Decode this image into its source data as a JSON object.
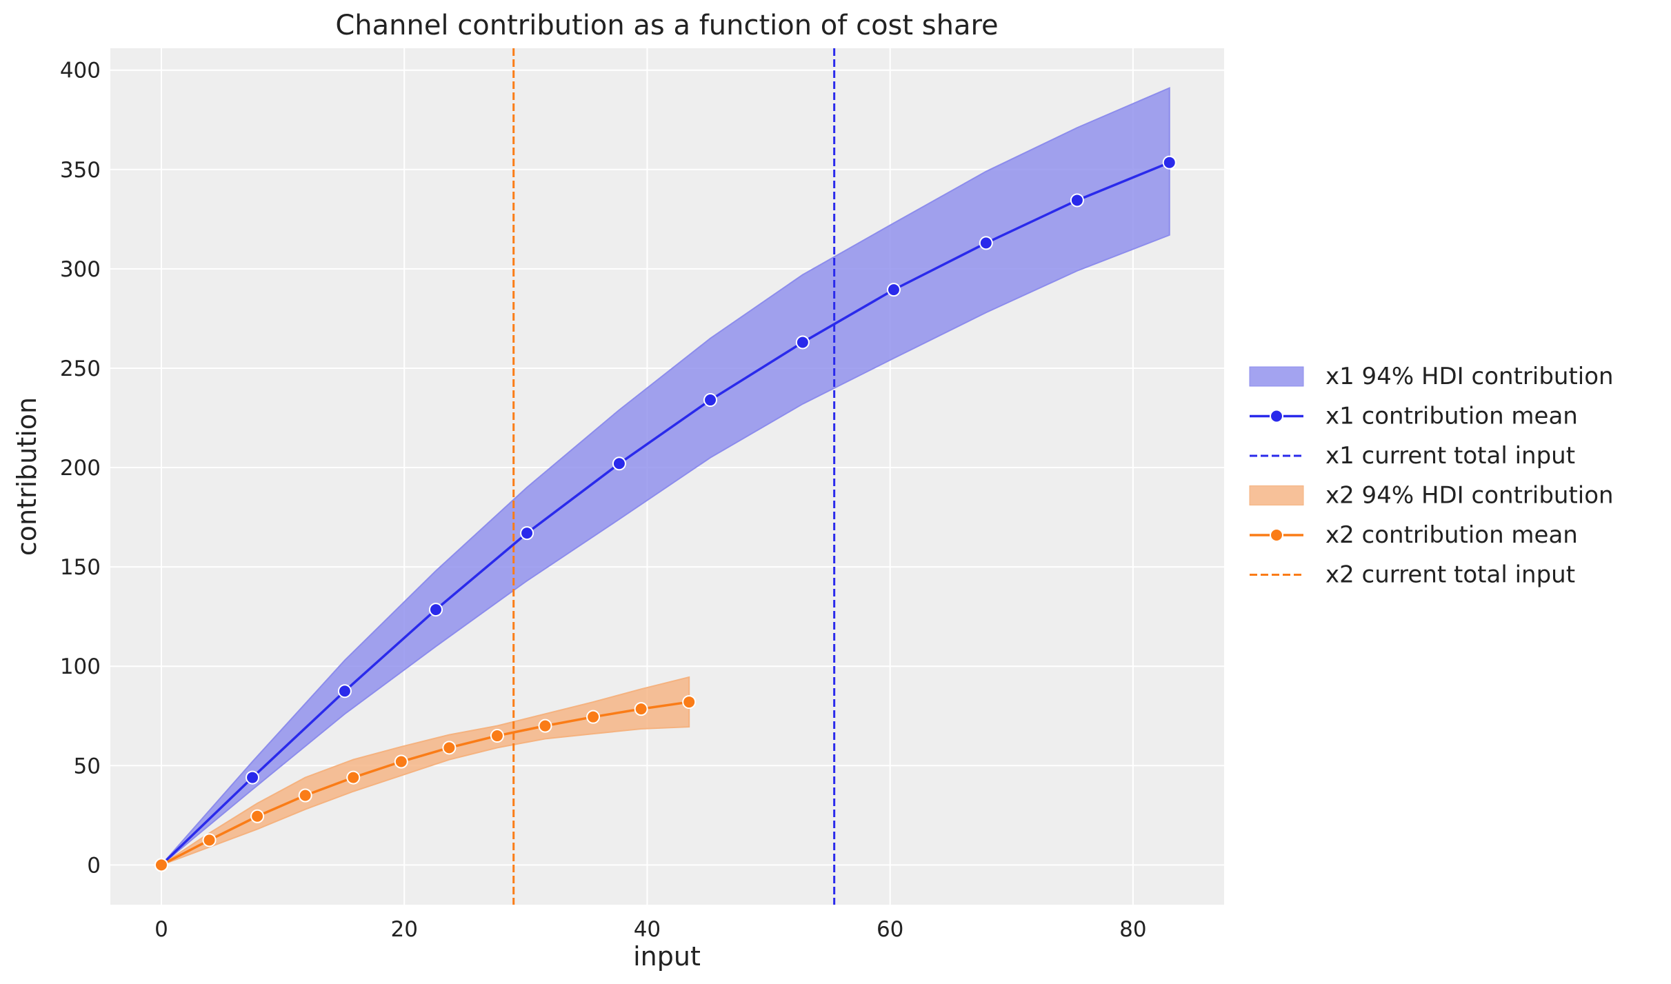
{
  "chart_data": {
    "type": "line",
    "title": "Channel contribution as a function of cost share",
    "xlabel": "input",
    "ylabel": "contribution",
    "xlim": [
      -4.2,
      87.5
    ],
    "ylim": [
      -20,
      411
    ],
    "xticks": [
      0,
      20,
      40,
      60,
      80
    ],
    "yticks": [
      0,
      50,
      100,
      150,
      200,
      250,
      300,
      350,
      400
    ],
    "grid": true,
    "legend_position": "right-outside",
    "colors": {
      "x1": "#2a2aeb",
      "x1_band": "#8c8cec",
      "x2": "#fa7c17",
      "x2_band": "#f5b27f",
      "background": "#eeeeee"
    },
    "series": [
      {
        "name": "x1 contribution mean",
        "band_name": "x1 94% HDI contribution",
        "vline_name": "x1 current total input",
        "vline_x": 55.4,
        "x": [
          0,
          7.5,
          15.1,
          22.6,
          30.1,
          37.7,
          45.2,
          52.8,
          60.3,
          67.9,
          75.4,
          83.0
        ],
        "y": [
          0,
          44,
          87.5,
          128.5,
          167,
          202,
          234,
          263,
          289.5,
          313,
          334.5,
          353.5
        ],
        "upper": [
          0,
          52,
          103,
          148,
          190,
          229,
          265,
          297,
          323,
          349,
          371,
          391
        ],
        "lower": [
          0,
          38,
          76,
          110,
          143,
          174,
          205,
          232,
          255,
          278,
          299,
          317
        ]
      },
      {
        "name": "x2 contribution mean",
        "band_name": "x2 94% HDI contribution",
        "vline_name": "x2 current total input",
        "vline_x": 29.0,
        "x": [
          0,
          3.95,
          7.9,
          11.85,
          15.8,
          19.75,
          23.7,
          27.65,
          31.6,
          35.55,
          39.5,
          43.45
        ],
        "y": [
          0,
          12.5,
          24.5,
          35,
          44,
          52,
          59,
          65,
          70,
          74.5,
          78.5,
          82
        ],
        "upper": [
          0,
          16,
          31,
          44,
          53,
          59.5,
          65.5,
          70,
          76,
          82,
          88.5,
          94.5
        ],
        "lower": [
          0,
          9,
          18,
          28,
          37,
          45,
          53,
          59,
          63.5,
          66,
          68.5,
          69.5
        ]
      }
    ]
  }
}
